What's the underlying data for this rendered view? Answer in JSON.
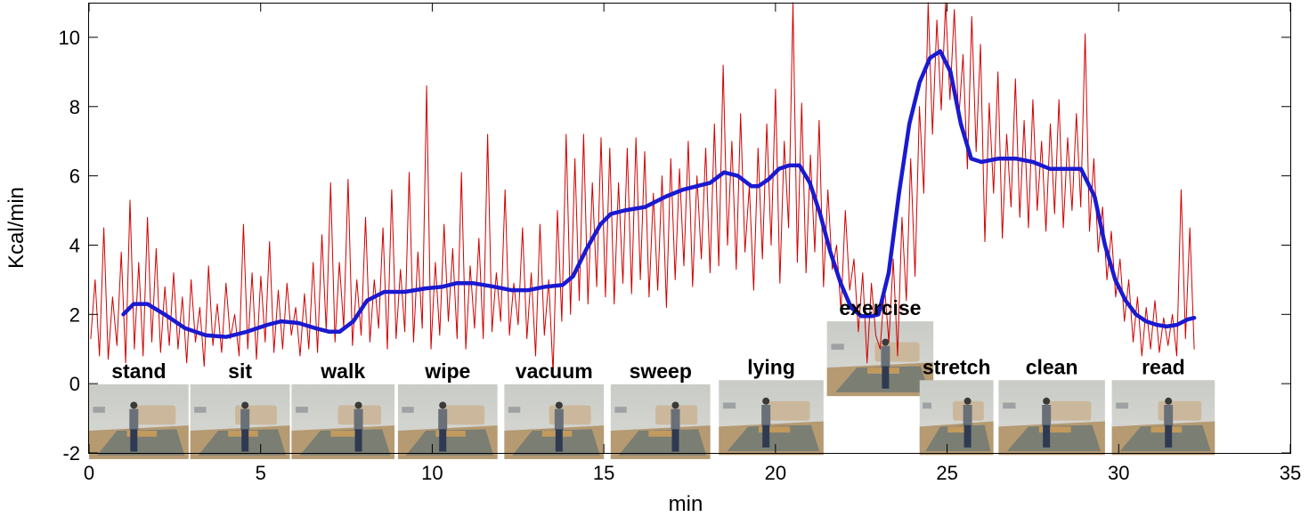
{
  "chart_data": {
    "type": "line",
    "xlabel": "min",
    "ylabel": "Kcal/min",
    "xlim": [
      0,
      35
    ],
    "ylim": [
      -2,
      11
    ],
    "xticks": [
      0,
      5,
      10,
      15,
      20,
      25,
      30,
      35
    ],
    "yticks": [
      -2,
      0,
      2,
      4,
      6,
      8,
      10
    ],
    "grid": false,
    "series": [
      {
        "name": "",
        "style": "thin-noisy",
        "color": "#d00000",
        "x_start": 0.05,
        "x_end": 32.2,
        "values": [
          1.3,
          3.0,
          0.8,
          4.5,
          0.7,
          2.5,
          1.1,
          3.8,
          0.6,
          5.3,
          1.0,
          3.5,
          0.8,
          4.8,
          1.2,
          3.9,
          0.9,
          2.8,
          1.1,
          3.2,
          1.0,
          2.5,
          0.6,
          3.0,
          1.2,
          2.2,
          0.5,
          3.4,
          1.1,
          2.3,
          0.9,
          2.9,
          1.3,
          2.0,
          0.8,
          4.6,
          1.0,
          3.2,
          0.7,
          3.1,
          1.2,
          4.1,
          0.9,
          2.7,
          1.0,
          2.9,
          1.4,
          2.2,
          0.8,
          2.6,
          1.0,
          3.5,
          0.9,
          4.3,
          1.5,
          5.8,
          1.2,
          3.5,
          1.6,
          5.9,
          1.1,
          3.0,
          1.4,
          4.8,
          1.2,
          3.0,
          1.6,
          4.5,
          1.0,
          5.6,
          1.3,
          3.3,
          1.5,
          6.1,
          1.2,
          3.8,
          1.6,
          8.6,
          1.0,
          3.5,
          1.4,
          4.6,
          1.8,
          3.9,
          1.3,
          6.1,
          1.0,
          3.4,
          1.6,
          4.2,
          1.3,
          7.2,
          1.5,
          3.2,
          1.8,
          5.6,
          1.4,
          2.9,
          1.7,
          4.5,
          1.3,
          3.2,
          0.8,
          4.6,
          1.4,
          3.0,
          0.3,
          5.0,
          1.8,
          7.2,
          2.0,
          6.5,
          2.4,
          7.2,
          2.3,
          5.8,
          2.8,
          7.1,
          2.5,
          6.8,
          2.3,
          5.8,
          2.9,
          6.8,
          2.6,
          7.1,
          3.0,
          6.7,
          2.5,
          5.5,
          2.7,
          6.0,
          2.2,
          6.5,
          3.0,
          6.2,
          3.4,
          7.0,
          2.8,
          6.0,
          3.6,
          6.8,
          3.2,
          7.5,
          3.4,
          9.2,
          4.0,
          7.0,
          3.3,
          7.8,
          3.8,
          5.7,
          2.7,
          6.8,
          3.6,
          7.5,
          4.0,
          8.5,
          2.9,
          7.0,
          4.5,
          11.0,
          3.5,
          8.1,
          3.2,
          6.6,
          3.8,
          7.6,
          2.8,
          5.6,
          3.3,
          4.0,
          2.1,
          5.0,
          2.7,
          3.6,
          1.5,
          3.2,
          0.6,
          2.9,
          1.4,
          1.0,
          2.8,
          1.2,
          3.6,
          0.8,
          4.8,
          2.4,
          6.5,
          3.1,
          8.0,
          5.5,
          11.0,
          7.2,
          10.5,
          7.9,
          11.0,
          8.2,
          10.8,
          7.6,
          9.5,
          6.2,
          10.6,
          6.7,
          9.8,
          4.1,
          8.1,
          5.5,
          9.0,
          4.2,
          7.2,
          5.1,
          8.8,
          4.8,
          7.6,
          4.5,
          8.2,
          5.0,
          7.0,
          4.4,
          7.5,
          4.9,
          8.2,
          4.5,
          7.1,
          5.0,
          7.8,
          5.1,
          10.1,
          4.4,
          6.5,
          3.8,
          5.1,
          3.0,
          4.4,
          2.5,
          3.6,
          1.8,
          3.0,
          1.2,
          2.5,
          0.8,
          2.2,
          1.0,
          2.4,
          0.9,
          1.9,
          1.1,
          2.0,
          0.8,
          5.6,
          1.3,
          4.5,
          1.0
        ]
      },
      {
        "name": "",
        "style": "thick-smoothed",
        "color": "#1a1ad0",
        "x": [
          1.0,
          1.3,
          1.7,
          2.2,
          2.8,
          3.4,
          4.0,
          4.6,
          5.2,
          5.6,
          6.1,
          6.6,
          7.0,
          7.3,
          7.7,
          8.1,
          8.6,
          9.2,
          9.8,
          10.3,
          10.7,
          11.2,
          11.8,
          12.3,
          12.8,
          13.3,
          13.8,
          14.1,
          14.5,
          14.9,
          15.2,
          15.6,
          16.2,
          16.8,
          17.3,
          17.7,
          18.1,
          18.5,
          18.9,
          19.3,
          19.5,
          19.8,
          20.1,
          20.4,
          20.7,
          21.0,
          21.3,
          21.6,
          21.9,
          22.2,
          22.5,
          22.8,
          23.0,
          23.3,
          23.6,
          23.9,
          24.2,
          24.5,
          24.8,
          25.1,
          25.4,
          25.7,
          26.0,
          26.5,
          27.0,
          27.5,
          28.0,
          28.5,
          28.9,
          29.3,
          29.6,
          29.9,
          30.2,
          30.5,
          30.8,
          31.1,
          31.4,
          31.7,
          32.0,
          32.2
        ],
        "y": [
          2.0,
          2.3,
          2.3,
          2.0,
          1.6,
          1.4,
          1.35,
          1.5,
          1.7,
          1.8,
          1.75,
          1.6,
          1.5,
          1.5,
          1.8,
          2.4,
          2.65,
          2.65,
          2.75,
          2.8,
          2.9,
          2.9,
          2.8,
          2.7,
          2.7,
          2.8,
          2.85,
          3.1,
          3.9,
          4.6,
          4.9,
          5.0,
          5.1,
          5.4,
          5.6,
          5.7,
          5.8,
          6.1,
          6.0,
          5.7,
          5.7,
          5.9,
          6.2,
          6.3,
          6.3,
          5.8,
          4.9,
          3.8,
          2.9,
          2.2,
          1.95,
          1.95,
          2.0,
          3.2,
          5.5,
          7.5,
          8.7,
          9.4,
          9.6,
          9.0,
          7.5,
          6.5,
          6.4,
          6.5,
          6.5,
          6.4,
          6.2,
          6.2,
          6.2,
          5.4,
          4.0,
          3.0,
          2.4,
          2.0,
          1.8,
          1.7,
          1.65,
          1.7,
          1.85,
          1.9
        ]
      }
    ],
    "activities": [
      {
        "label": "stand",
        "x_from": 0.0,
        "x_to": 2.9,
        "y_img_top": -0.02
      },
      {
        "label": "sit",
        "x_from": 2.95,
        "x_to": 5.85,
        "y_img_top": -0.02
      },
      {
        "label": "walk",
        "x_from": 5.9,
        "x_to": 8.9,
        "y_img_top": -0.02
      },
      {
        "label": "wipe",
        "x_from": 9.0,
        "x_to": 11.9,
        "y_img_top": -0.02
      },
      {
        "label": "vacuum",
        "x_from": 12.1,
        "x_to": 15.0,
        "y_img_top": -0.02
      },
      {
        "label": "sweep",
        "x_from": 15.2,
        "x_to": 18.1,
        "y_img_top": -0.02
      },
      {
        "label": "lying",
        "x_from": 18.35,
        "x_to": 21.4,
        "y_img_top": 0.1
      },
      {
        "label": "exercise",
        "x_from": 21.5,
        "x_to": 24.6,
        "y_img_top": 1.8
      },
      {
        "label": "stretch",
        "x_from": 24.2,
        "x_to": 26.35,
        "y_img_top": 0.1
      },
      {
        "label": "clean",
        "x_from": 26.5,
        "x_to": 29.6,
        "y_img_top": 0.1
      },
      {
        "label": "read",
        "x_from": 29.8,
        "x_to": 32.8,
        "y_img_top": 0.1
      }
    ]
  }
}
